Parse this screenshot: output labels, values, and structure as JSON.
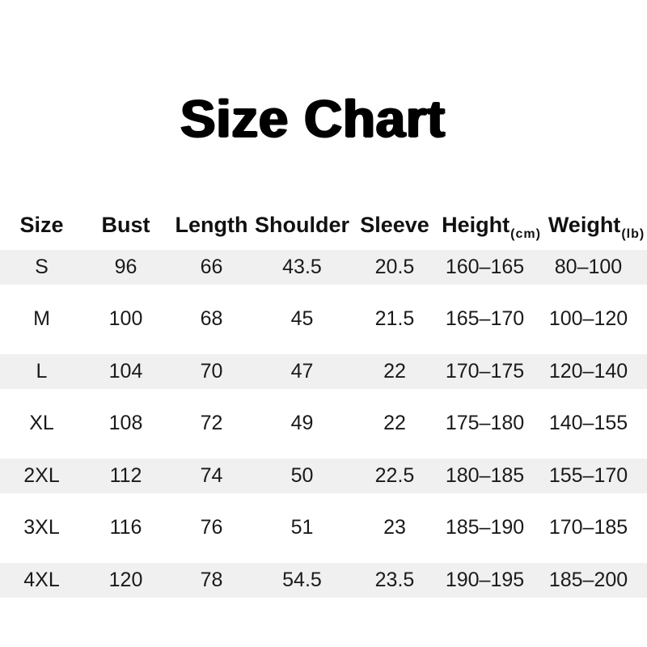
{
  "title": "Size Chart",
  "table": {
    "headers": [
      {
        "label": "Size",
        "unit": ""
      },
      {
        "label": "Bust",
        "unit": ""
      },
      {
        "label": "Length",
        "unit": ""
      },
      {
        "label": "Shoulder",
        "unit": ""
      },
      {
        "label": "Sleeve",
        "unit": ""
      },
      {
        "label": "Height",
        "unit": "(cm)"
      },
      {
        "label": "Weight",
        "unit": "(lb)"
      }
    ],
    "rows": [
      {
        "cells": [
          "S",
          "96",
          "66",
          "43.5",
          "20.5",
          "160–165",
          "80–100"
        ]
      },
      {
        "cells": [
          "M",
          "100",
          "68",
          "45",
          "21.5",
          "165–170",
          "100–120"
        ]
      },
      {
        "cells": [
          "L",
          "104",
          "70",
          "47",
          "22",
          "170–175",
          "120–140"
        ]
      },
      {
        "cells": [
          "XL",
          "108",
          "72",
          "49",
          "22",
          "175–180",
          "140–155"
        ]
      },
      {
        "cells": [
          "2XL",
          "112",
          "74",
          "50",
          "22.5",
          "180–185",
          "155–170"
        ]
      },
      {
        "cells": [
          "3XL",
          "116",
          "76",
          "51",
          "23",
          "185–190",
          "170–185"
        ]
      },
      {
        "cells": [
          "4XL",
          "120",
          "78",
          "54.5",
          "23.5",
          "190–195",
          "185–200"
        ]
      }
    ]
  },
  "chart_data": {
    "type": "table",
    "title": "Size Chart",
    "columns": [
      "Size",
      "Bust",
      "Length",
      "Shoulder",
      "Sleeve",
      "Height (cm)",
      "Weight (lb)"
    ],
    "rows": [
      [
        "S",
        96,
        66,
        43.5,
        20.5,
        "160–165",
        "80–100"
      ],
      [
        "M",
        100,
        68,
        45,
        21.5,
        "165–170",
        "100–120"
      ],
      [
        "L",
        104,
        70,
        47,
        22,
        "170–175",
        "120–140"
      ],
      [
        "XL",
        108,
        72,
        49,
        22,
        "175–180",
        "140–155"
      ],
      [
        "2XL",
        112,
        74,
        50,
        22.5,
        "180–185",
        "155–170"
      ],
      [
        "3XL",
        116,
        76,
        51,
        23,
        "185–190",
        "170–185"
      ],
      [
        "4XL",
        120,
        78,
        54.5,
        23.5,
        "190–195",
        "185–200"
      ]
    ],
    "layout_hints": {
      "striped_row_sizes": [
        "S",
        "L",
        "2XL",
        "4XL"
      ],
      "grid": "off",
      "header_bold": true
    }
  },
  "colors": {
    "background": "#ffffff",
    "stripe": "#f0f0f0",
    "title_text": "#000000",
    "header_text": "#111111",
    "body_text": "#1a1a1a"
  }
}
